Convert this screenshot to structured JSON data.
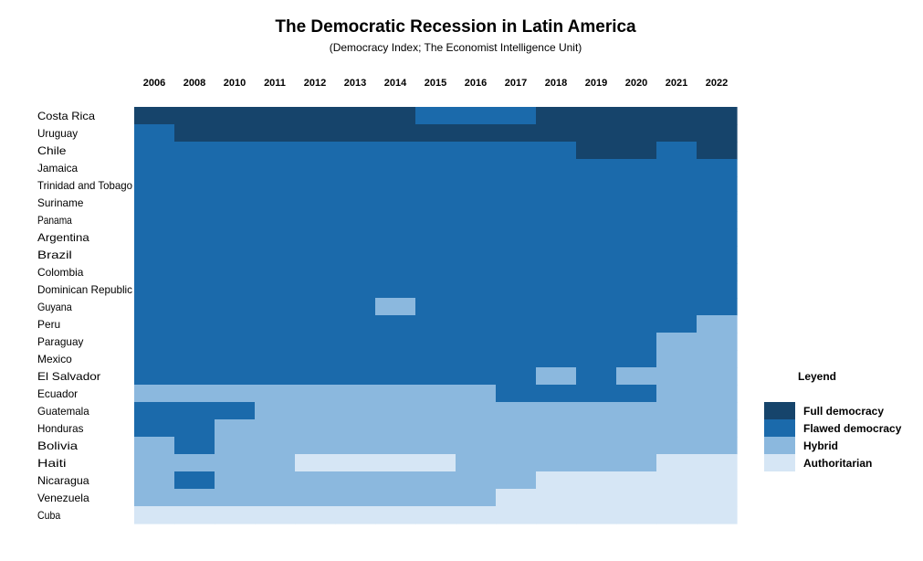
{
  "chart_data": {
    "type": "heatmap",
    "title": "The Democratic Recession in Latin America",
    "subtitle": "(Democracy Index; The Economist Intelligence Unit)",
    "years": [
      "2006",
      "2008",
      "2010",
      "2011",
      "2012",
      "2013",
      "2014",
      "2015",
      "2016",
      "2017",
      "2018",
      "2019",
      "2020",
      "2021",
      "2022"
    ],
    "countries": [
      "Costa Rica",
      "Uruguay",
      "Chile",
      "Jamaica",
      "Trinidad and Tobago",
      "Suriname",
      "Panama",
      "Argentina",
      "Brazil",
      "Colombia",
      "Dominican Republic",
      "Guyana",
      "Peru",
      "Paraguay",
      "Mexico",
      "El Salvador",
      "Ecuador",
      "Guatemala",
      "Honduras",
      "Bolivia",
      "Haiti",
      "Nicaragua",
      "Venezuela",
      "Cuba"
    ],
    "categories": [
      "Full democracy",
      "Flawed democracy",
      "Hybrid",
      "Authoritarian"
    ],
    "colors": [
      "#16446b",
      "#1b6aab",
      "#8bb8de",
      "#d6e6f5"
    ],
    "values": [
      [
        0,
        0,
        0,
        0,
        0,
        0,
        0,
        1,
        1,
        1,
        0,
        0,
        0,
        0,
        0
      ],
      [
        1,
        0,
        0,
        0,
        0,
        0,
        0,
        0,
        0,
        0,
        0,
        0,
        0,
        0,
        0
      ],
      [
        1,
        1,
        1,
        1,
        1,
        1,
        1,
        1,
        1,
        1,
        1,
        0,
        0,
        1,
        0
      ],
      [
        1,
        1,
        1,
        1,
        1,
        1,
        1,
        1,
        1,
        1,
        1,
        1,
        1,
        1,
        1
      ],
      [
        1,
        1,
        1,
        1,
        1,
        1,
        1,
        1,
        1,
        1,
        1,
        1,
        1,
        1,
        1
      ],
      [
        1,
        1,
        1,
        1,
        1,
        1,
        1,
        1,
        1,
        1,
        1,
        1,
        1,
        1,
        1
      ],
      [
        1,
        1,
        1,
        1,
        1,
        1,
        1,
        1,
        1,
        1,
        1,
        1,
        1,
        1,
        1
      ],
      [
        1,
        1,
        1,
        1,
        1,
        1,
        1,
        1,
        1,
        1,
        1,
        1,
        1,
        1,
        1
      ],
      [
        1,
        1,
        1,
        1,
        1,
        1,
        1,
        1,
        1,
        1,
        1,
        1,
        1,
        1,
        1
      ],
      [
        1,
        1,
        1,
        1,
        1,
        1,
        1,
        1,
        1,
        1,
        1,
        1,
        1,
        1,
        1
      ],
      [
        1,
        1,
        1,
        1,
        1,
        1,
        1,
        1,
        1,
        1,
        1,
        1,
        1,
        1,
        1
      ],
      [
        1,
        1,
        1,
        1,
        1,
        1,
        2,
        1,
        1,
        1,
        1,
        1,
        1,
        1,
        1
      ],
      [
        1,
        1,
        1,
        1,
        1,
        1,
        1,
        1,
        1,
        1,
        1,
        1,
        1,
        1,
        2
      ],
      [
        1,
        1,
        1,
        1,
        1,
        1,
        1,
        1,
        1,
        1,
        1,
        1,
        1,
        2,
        2
      ],
      [
        1,
        1,
        1,
        1,
        1,
        1,
        1,
        1,
        1,
        1,
        1,
        1,
        1,
        2,
        2
      ],
      [
        1,
        1,
        1,
        1,
        1,
        1,
        1,
        1,
        1,
        1,
        2,
        1,
        2,
        2,
        2
      ],
      [
        2,
        2,
        2,
        2,
        2,
        2,
        2,
        2,
        2,
        1,
        1,
        1,
        1,
        2,
        2
      ],
      [
        1,
        1,
        1,
        2,
        2,
        2,
        2,
        2,
        2,
        2,
        2,
        2,
        2,
        2,
        2
      ],
      [
        1,
        1,
        2,
        2,
        2,
        2,
        2,
        2,
        2,
        2,
        2,
        2,
        2,
        2,
        2
      ],
      [
        2,
        1,
        2,
        2,
        2,
        2,
        2,
        2,
        2,
        2,
        2,
        2,
        2,
        2,
        2
      ],
      [
        2,
        2,
        2,
        2,
        3,
        3,
        3,
        3,
        2,
        2,
        2,
        2,
        2,
        3,
        3
      ],
      [
        2,
        1,
        2,
        2,
        2,
        2,
        2,
        2,
        2,
        2,
        3,
        3,
        3,
        3,
        3
      ],
      [
        2,
        2,
        2,
        2,
        2,
        2,
        2,
        2,
        2,
        3,
        3,
        3,
        3,
        3,
        3
      ],
      [
        3,
        3,
        3,
        3,
        3,
        3,
        3,
        3,
        3,
        3,
        3,
        3,
        3,
        3,
        3
      ]
    ],
    "legend": {
      "title": "Leyend",
      "labels": [
        "Full democracy",
        "Flawed democracy",
        "Hybrid",
        "Authoritarian"
      ],
      "position": "right"
    }
  }
}
